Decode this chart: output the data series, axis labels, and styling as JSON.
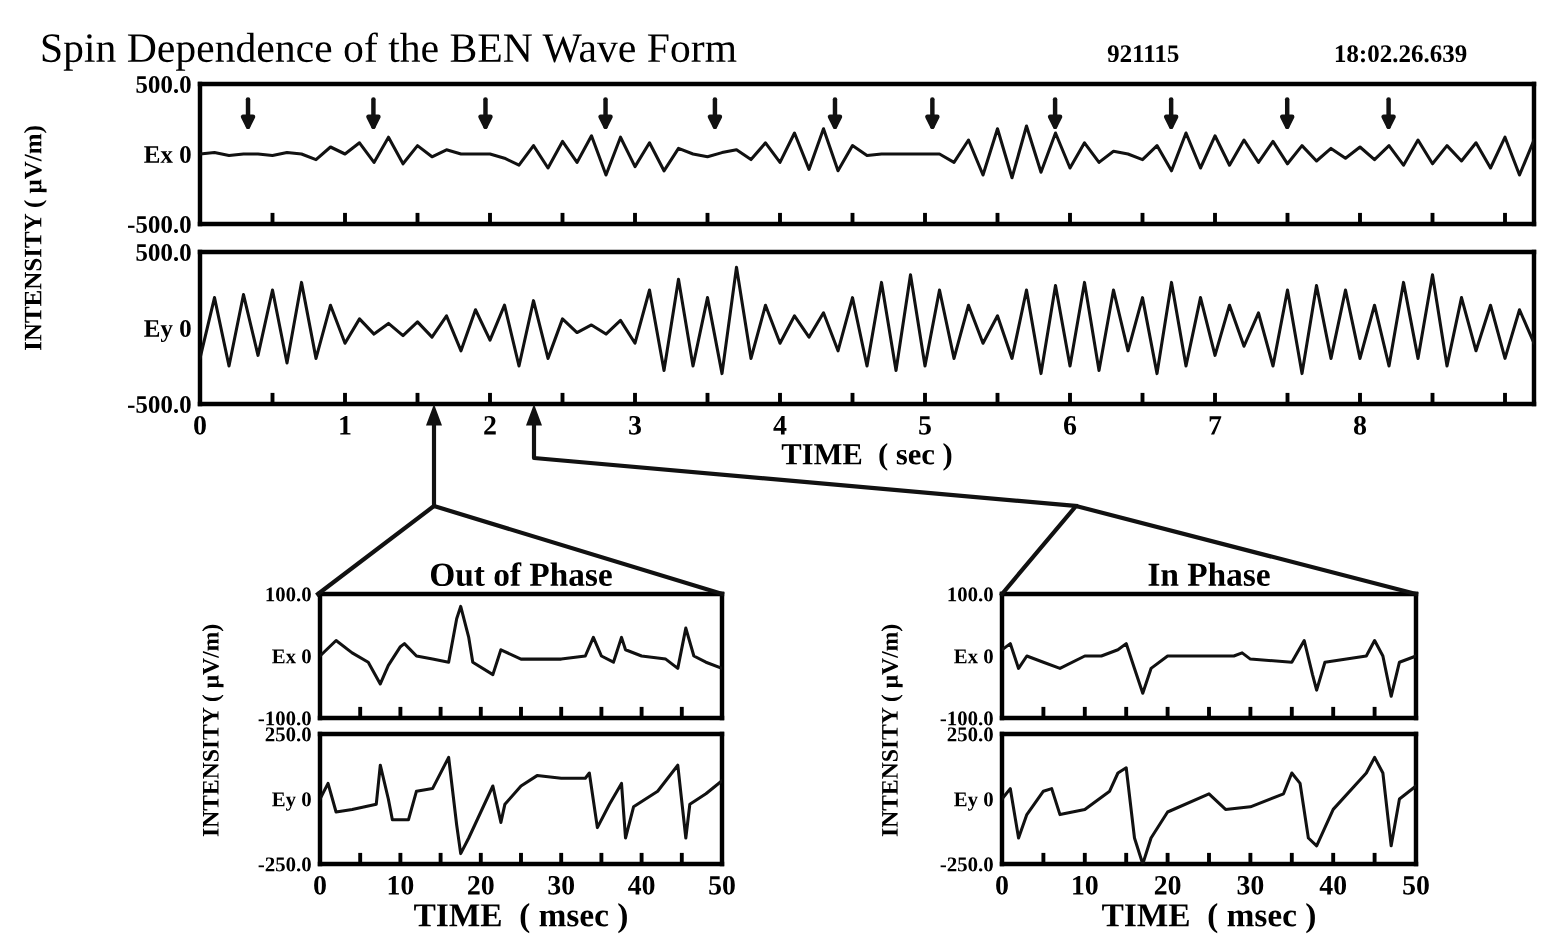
{
  "chart_data": [
    {
      "type": "line",
      "title": "Spin Dependence of the BEN Wave Form",
      "ylabel": "INTENSITY ( μV/m)",
      "tick_labels": "y",
      "annotations": [
        "921115",
        "18:02.26.639"
      ],
      "xlim": [
        0,
        9.2
      ],
      "xticks": [
        0,
        {
          "value": 0.5,
          "label": null
        },
        1,
        {
          "value": 1.5,
          "label": null
        },
        2,
        {
          "value": 2.5,
          "label": null
        },
        3,
        {
          "value": 3.5,
          "label": null
        },
        4,
        {
          "value": 4.5,
          "label": null
        },
        5,
        {
          "value": 5.5,
          "label": null
        },
        6,
        {
          "value": 6.5,
          "label": null
        },
        7,
        {
          "value": 7.5,
          "label": null
        },
        8,
        {
          "value": 8.5,
          "label": null
        },
        {
          "value": 9,
          "label": null
        }
      ],
      "ylim": [
        -500,
        500
      ],
      "yticks": [
        {
          "value": -500,
          "label": "-500.0"
        },
        {
          "value": 0,
          "label": "Ex 0"
        },
        {
          "value": 500,
          "label": "500.0"
        }
      ],
      "x": [
        0.0,
        0.1,
        0.2,
        0.3,
        0.4,
        0.5,
        0.6,
        0.7,
        0.8,
        0.9,
        1.0,
        1.1,
        1.2,
        1.3,
        1.4,
        1.5,
        1.6,
        1.7,
        1.8,
        1.9,
        2.0,
        2.1,
        2.2,
        2.3,
        2.4,
        2.5,
        2.6,
        2.7,
        2.8,
        2.9,
        3.0,
        3.1,
        3.2,
        3.3,
        3.4,
        3.5,
        3.6,
        3.7,
        3.8,
        3.9,
        4.0,
        4.1,
        4.2,
        4.3,
        4.4,
        4.5,
        4.6,
        4.7,
        4.8,
        4.9,
        5.0,
        5.1,
        5.2,
        5.3,
        5.4,
        5.5,
        5.6,
        5.7,
        5.8,
        5.9,
        6.0,
        6.1,
        6.2,
        6.3,
        6.4,
        6.5,
        6.6,
        6.7,
        6.8,
        6.9,
        7.0,
        7.1,
        7.2,
        7.3,
        7.4,
        7.5,
        7.6,
        7.7,
        7.8,
        7.9,
        8.0,
        8.1,
        8.2,
        8.3,
        8.4,
        8.5,
        8.6,
        8.7,
        8.8,
        8.9,
        9.0,
        9.1,
        9.2
      ],
      "series": [
        {
          "color": "#111111",
          "values": [
            0,
            10,
            -10,
            0,
            0,
            -10,
            10,
            0,
            -40,
            50,
            0,
            80,
            -60,
            120,
            -70,
            60,
            -20,
            30,
            0,
            0,
            0,
            -30,
            -80,
            60,
            -100,
            90,
            -60,
            130,
            -150,
            120,
            -90,
            80,
            -120,
            40,
            0,
            -20,
            10,
            30,
            -40,
            80,
            -60,
            150,
            -110,
            180,
            -120,
            60,
            -10,
            0,
            0,
            0,
            0,
            0,
            -60,
            100,
            -150,
            180,
            -170,
            200,
            -130,
            150,
            -100,
            80,
            -60,
            20,
            0,
            -40,
            60,
            -120,
            150,
            -100,
            130,
            -80,
            100,
            -60,
            90,
            -70,
            60,
            -50,
            40,
            -30,
            50,
            -40,
            60,
            -80,
            100,
            -70,
            60,
            -50,
            80,
            -100,
            120,
            -150,
            100
          ]
        }
      ]
    },
    {
      "type": "line",
      "xlabel": "TIME  ( sec )",
      "xlim": [
        0,
        9.2
      ],
      "xticks": [
        0,
        {
          "value": 0.5,
          "label": null
        },
        1,
        {
          "value": 1.5,
          "label": null
        },
        2,
        {
          "value": 2.5,
          "label": null
        },
        3,
        {
          "value": 3.5,
          "label": null
        },
        4,
        {
          "value": 4.5,
          "label": null
        },
        5,
        {
          "value": 5.5,
          "label": null
        },
        6,
        {
          "value": 6.5,
          "label": null
        },
        7,
        {
          "value": 7.5,
          "label": null
        },
        8,
        {
          "value": 8.5,
          "label": null
        },
        {
          "value": 9,
          "label": null
        }
      ],
      "ylim": [
        -500,
        500
      ],
      "yticks": [
        {
          "value": -500,
          "label": "-500.0"
        },
        {
          "value": 0,
          "label": "Ey 0"
        },
        {
          "value": 500,
          "label": "500.0"
        }
      ],
      "x": [
        0.0,
        0.1,
        0.2,
        0.3,
        0.4,
        0.5,
        0.6,
        0.7,
        0.8,
        0.9,
        1.0,
        1.1,
        1.2,
        1.3,
        1.4,
        1.5,
        1.6,
        1.7,
        1.8,
        1.9,
        2.0,
        2.1,
        2.2,
        2.3,
        2.4,
        2.5,
        2.6,
        2.7,
        2.8,
        2.9,
        3.0,
        3.1,
        3.2,
        3.3,
        3.4,
        3.5,
        3.6,
        3.7,
        3.8,
        3.9,
        4.0,
        4.1,
        4.2,
        4.3,
        4.4,
        4.5,
        4.6,
        4.7,
        4.8,
        4.9,
        5.0,
        5.1,
        5.2,
        5.3,
        5.4,
        5.5,
        5.6,
        5.7,
        5.8,
        5.9,
        6.0,
        6.1,
        6.2,
        6.3,
        6.4,
        6.5,
        6.6,
        6.7,
        6.8,
        6.9,
        7.0,
        7.1,
        7.2,
        7.3,
        7.4,
        7.5,
        7.6,
        7.7,
        7.8,
        7.9,
        8.0,
        8.1,
        8.2,
        8.3,
        8.4,
        8.5,
        8.6,
        8.7,
        8.8,
        8.9,
        9.0,
        9.1,
        9.2
      ],
      "series": [
        {
          "color": "#111111",
          "values": [
            -200,
            200,
            -250,
            220,
            -180,
            250,
            -230,
            300,
            -200,
            150,
            -100,
            60,
            -40,
            30,
            -50,
            40,
            -60,
            80,
            -150,
            120,
            -80,
            150,
            -250,
            180,
            -200,
            60,
            -30,
            20,
            -40,
            50,
            -100,
            250,
            -280,
            320,
            -250,
            200,
            -300,
            400,
            -200,
            150,
            -100,
            80,
            -60,
            100,
            -150,
            200,
            -250,
            300,
            -280,
            350,
            -250,
            250,
            -200,
            150,
            -100,
            80,
            -200,
            250,
            -300,
            280,
            -250,
            300,
            -280,
            250,
            -150,
            200,
            -300,
            300,
            -250,
            200,
            -180,
            150,
            -120,
            100,
            -250,
            250,
            -300,
            280,
            -200,
            250,
            -200,
            150,
            -250,
            300,
            -200,
            350,
            -250,
            200,
            -150,
            150,
            -200,
            120,
            -100
          ]
        }
      ]
    },
    {
      "type": "line",
      "title": "Out of Phase",
      "ylabel": "INTENSITY ( μV/m)",
      "tick_labels": "y",
      "xlim": [
        0,
        50
      ],
      "xticks": [
        0,
        {
          "value": 5,
          "label": null
        },
        10,
        {
          "value": 15,
          "label": null
        },
        20,
        {
          "value": 25,
          "label": null
        },
        30,
        {
          "value": 35,
          "label": null
        },
        40,
        {
          "value": 45,
          "label": null
        },
        50
      ],
      "ylim": [
        -100,
        100
      ],
      "yticks": [
        {
          "value": -100,
          "label": "-100.0"
        },
        {
          "value": 0,
          "label": "Ex 0"
        },
        {
          "value": 100,
          "label": "100.0"
        }
      ],
      "x": [
        0,
        2,
        4,
        6,
        7.5,
        8.5,
        10,
        10.5,
        12,
        14,
        16,
        17,
        17.5,
        18.5,
        19,
        21.5,
        22.5,
        25,
        30,
        33,
        34,
        35,
        36.5,
        37.5,
        38,
        40,
        43,
        44.5,
        45.5,
        46.5,
        48,
        50
      ],
      "series": [
        {
          "color": "#111111",
          "values": [
            0,
            25,
            5,
            -10,
            -45,
            -15,
            15,
            20,
            0,
            -5,
            -10,
            60,
            80,
            30,
            -10,
            -30,
            10,
            -5,
            -5,
            0,
            30,
            0,
            -10,
            30,
            10,
            0,
            -5,
            -20,
            45,
            0,
            -10,
            -20
          ]
        }
      ]
    },
    {
      "type": "line",
      "xlabel": "TIME  ( msec )",
      "xlim": [
        0,
        50
      ],
      "xticks": [
        0,
        {
          "value": 5,
          "label": null
        },
        10,
        {
          "value": 15,
          "label": null
        },
        20,
        {
          "value": 25,
          "label": null
        },
        30,
        {
          "value": 35,
          "label": null
        },
        40,
        {
          "value": 45,
          "label": null
        },
        50
      ],
      "ylim": [
        -250,
        250
      ],
      "yticks": [
        {
          "value": -250,
          "label": "-250.0"
        },
        {
          "value": 0,
          "label": "Ey 0"
        },
        {
          "value": 250,
          "label": "250.0"
        }
      ],
      "x": [
        0,
        1,
        2,
        4,
        7,
        7.5,
        8.5,
        9,
        11,
        12,
        14,
        16,
        17,
        17.5,
        18.5,
        20,
        21.5,
        22.5,
        23,
        25,
        27,
        30,
        33,
        33.5,
        34.5,
        36,
        37.5,
        38,
        39,
        42,
        44.5,
        45.5,
        46,
        48,
        50
      ],
      "series": [
        {
          "color": "#111111",
          "values": [
            0,
            60,
            -50,
            -40,
            -20,
            130,
            0,
            -80,
            -80,
            30,
            40,
            160,
            -100,
            -210,
            -150,
            -50,
            50,
            -90,
            -20,
            50,
            90,
            80,
            80,
            100,
            -110,
            -20,
            60,
            -150,
            -30,
            30,
            130,
            -150,
            -20,
            20,
            70
          ]
        }
      ]
    },
    {
      "type": "line",
      "title": "In Phase",
      "ylabel": "INTENSITY ( μV/m)",
      "tick_labels": "y",
      "xlim": [
        0,
        50
      ],
      "xticks": [
        0,
        {
          "value": 5,
          "label": null
        },
        10,
        {
          "value": 15,
          "label": null
        },
        20,
        {
          "value": 25,
          "label": null
        },
        30,
        {
          "value": 35,
          "label": null
        },
        40,
        {
          "value": 45,
          "label": null
        },
        50
      ],
      "ylim": [
        -100,
        100
      ],
      "yticks": [
        {
          "value": -100,
          "label": "-100.0"
        },
        {
          "value": 0,
          "label": "Ex 0"
        },
        {
          "value": 100,
          "label": "100.0"
        }
      ],
      "x": [
        0,
        1,
        2,
        3,
        5,
        7,
        10,
        12,
        14,
        15,
        16,
        17,
        18,
        20,
        25,
        28,
        29,
        30,
        35,
        36.5,
        37.5,
        38,
        39,
        44,
        45,
        46,
        47,
        48,
        50
      ],
      "series": [
        {
          "color": "#111111",
          "values": [
            10,
            20,
            -20,
            0,
            -10,
            -20,
            0,
            0,
            10,
            20,
            -20,
            -60,
            -20,
            0,
            0,
            0,
            5,
            -5,
            -10,
            25,
            -30,
            -55,
            -10,
            0,
            25,
            0,
            -65,
            -10,
            0
          ]
        }
      ]
    },
    {
      "type": "line",
      "xlabel": "TIME  ( msec )",
      "xlim": [
        0,
        50
      ],
      "xticks": [
        0,
        {
          "value": 5,
          "label": null
        },
        10,
        {
          "value": 15,
          "label": null
        },
        20,
        {
          "value": 25,
          "label": null
        },
        30,
        {
          "value": 35,
          "label": null
        },
        40,
        {
          "value": 45,
          "label": null
        },
        50
      ],
      "ylim": [
        -250,
        250
      ],
      "yticks": [
        {
          "value": -250,
          "label": "-250.0"
        },
        {
          "value": 0,
          "label": "Ey 0"
        },
        {
          "value": 250,
          "label": "250.0"
        }
      ],
      "x": [
        0,
        1,
        2,
        3,
        5,
        6,
        7,
        10,
        13,
        14,
        15,
        16,
        17,
        18,
        20,
        25,
        27,
        30,
        34,
        35,
        36,
        37,
        38,
        40,
        44,
        45,
        46,
        47,
        48,
        50
      ],
      "series": [
        {
          "color": "#111111",
          "values": [
            0,
            40,
            -150,
            -60,
            30,
            40,
            -60,
            -40,
            30,
            100,
            120,
            -150,
            -250,
            -150,
            -50,
            20,
            -40,
            -30,
            20,
            100,
            60,
            -150,
            -180,
            -40,
            100,
            160,
            100,
            -180,
            0,
            50
          ]
        }
      ]
    }
  ]
}
